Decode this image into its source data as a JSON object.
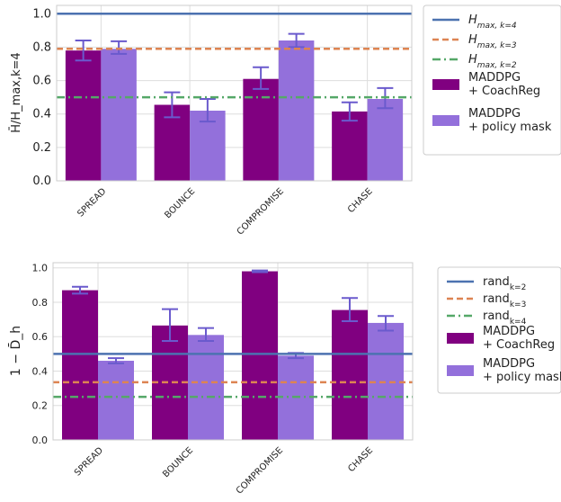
{
  "colors": {
    "series1": "#800080",
    "series2": "#9370db",
    "err": "#6a5acd",
    "line_blue": "#4c72b0",
    "line_orange": "#dd8452",
    "line_green": "#55a868",
    "grid": "#dddddd",
    "frame": "#cccccc"
  },
  "chart_data": [
    {
      "type": "bar",
      "title": "",
      "xlabel": "",
      "ylabel": "H̄/H_max,k=4",
      "ylim": [
        0.0,
        1.05
      ],
      "yticks": [
        "0.0",
        "0.2",
        "0.4",
        "0.6",
        "0.8",
        "1.0"
      ],
      "categories": [
        "SPREAD",
        "BOUNCE",
        "COMPROMISE",
        "CHASE"
      ],
      "series": [
        {
          "name": "MADDPG + CoachReg",
          "values": [
            0.78,
            0.455,
            0.61,
            0.415
          ],
          "err_low": [
            0.72,
            0.38,
            0.55,
            0.36
          ],
          "err_high": [
            0.84,
            0.53,
            0.68,
            0.47
          ]
        },
        {
          "name": "MADDPG + policy mask",
          "values": [
            0.79,
            0.42,
            0.84,
            0.49
          ],
          "err_low": [
            0.76,
            0.355,
            0.8,
            0.435
          ],
          "err_high": [
            0.835,
            0.49,
            0.88,
            0.555
          ]
        }
      ],
      "hlines": [
        {
          "name": "H_max,k=4",
          "value": 1.0,
          "style": "solid",
          "color": "#4c72b0"
        },
        {
          "name": "H_max,k=3",
          "value": 0.79,
          "style": "dashed",
          "color": "#dd8452"
        },
        {
          "name": "H_max,k=2",
          "value": 0.5,
          "style": "dashdot",
          "color": "#55a868"
        }
      ],
      "legend": {
        "placement": "outside-right",
        "entries": [
          "H_max, k=4",
          "H_max, k=3",
          "H_max, k=2",
          "MADDPG + CoachReg",
          "MADDPG + policy mask"
        ]
      },
      "grid": true
    },
    {
      "type": "bar",
      "title": "",
      "xlabel": "",
      "ylabel": "1 − D̄_h",
      "ylim": [
        0.0,
        1.03
      ],
      "yticks": [
        "0.0",
        "0.2",
        "0.4",
        "0.6",
        "0.8",
        "1.0"
      ],
      "categories": [
        "SPREAD",
        "BOUNCE",
        "COMPROMISE",
        "CHASE"
      ],
      "series": [
        {
          "name": "MADDPG + CoachReg",
          "values": [
            0.87,
            0.665,
            0.98,
            0.755
          ],
          "err_low": [
            0.85,
            0.575,
            0.975,
            0.69
          ],
          "err_high": [
            0.89,
            0.76,
            0.985,
            0.825
          ]
        },
        {
          "name": "MADDPG + policy mask",
          "values": [
            0.46,
            0.61,
            0.49,
            0.68
          ],
          "err_low": [
            0.445,
            0.575,
            0.475,
            0.635
          ],
          "err_high": [
            0.475,
            0.65,
            0.505,
            0.72
          ]
        }
      ],
      "hlines": [
        {
          "name": "rand_k=2",
          "value": 0.5,
          "style": "solid",
          "color": "#4c72b0"
        },
        {
          "name": "rand_k=3",
          "value": 0.335,
          "style": "dashed",
          "color": "#dd8452"
        },
        {
          "name": "rand_k=4",
          "value": 0.25,
          "style": "dashdot",
          "color": "#55a868"
        }
      ],
      "legend": {
        "placement": "outside-right",
        "entries": [
          "rand_k=2",
          "rand_k=3",
          "rand_k=4",
          "MADDPG + CoachReg",
          "MADDPG + policy mask"
        ]
      },
      "grid": true
    }
  ]
}
